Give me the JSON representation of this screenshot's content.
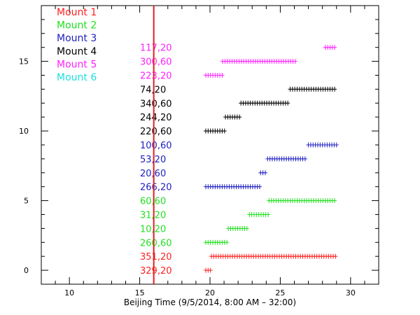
{
  "chart_data": {
    "type": "scatter",
    "xlabel": "Beijing Time (9/5/2014, 8:00 AM – 32:00)",
    "ylabel": "",
    "xlim": [
      8,
      32
    ],
    "ylim": [
      -1,
      19
    ],
    "x_ticks": [
      "10",
      "15",
      "20",
      "25",
      "30"
    ],
    "x_tick_values": [
      10,
      15,
      20,
      25,
      30
    ],
    "y_ticks": [
      "0",
      "5",
      "10",
      "15"
    ],
    "y_tick_values": [
      0,
      5,
      10,
      15
    ],
    "marker": "+",
    "reference_line": {
      "x": 16,
      "color": "#e02020"
    },
    "legend": [
      {
        "name": "Mount 1",
        "color": "#ff2020"
      },
      {
        "name": "Mount 2",
        "color": "#20e020"
      },
      {
        "name": "Mount 3",
        "color": "#2020c0"
      },
      {
        "name": "Mount 4",
        "color": "#000000"
      },
      {
        "name": "Mount 5",
        "color": "#ff20ff"
      },
      {
        "name": "Mount 6",
        "color": "#20e0e0"
      }
    ],
    "rows": [
      {
        "label": "329,20",
        "mount": 1,
        "y": 0,
        "x_start": 19.7,
        "x_end": 20.1
      },
      {
        "label": "351,20",
        "mount": 1,
        "y": 1,
        "x_start": 20.1,
        "x_end": 29.0
      },
      {
        "label": "260,60",
        "mount": 2,
        "y": 2,
        "x_start": 19.7,
        "x_end": 21.2
      },
      {
        "label": "10,20",
        "mount": 2,
        "y": 3,
        "x_start": 21.3,
        "x_end": 22.7
      },
      {
        "label": "31,20",
        "mount": 2,
        "y": 4,
        "x_start": 22.8,
        "x_end": 24.2
      },
      {
        "label": "60,60",
        "mount": 2,
        "y": 5,
        "x_start": 24.2,
        "x_end": 29.0
      },
      {
        "label": "266,20",
        "mount": 3,
        "y": 6,
        "x_start": 19.7,
        "x_end": 23.6
      },
      {
        "label": "20,60",
        "mount": 3,
        "y": 7,
        "x_start": 23.6,
        "x_end": 24.0
      },
      {
        "label": "53,20",
        "mount": 3,
        "y": 8,
        "x_start": 24.1,
        "x_end": 26.9
      },
      {
        "label": "100,60",
        "mount": 3,
        "y": 9,
        "x_start": 27.0,
        "x_end": 29.0
      },
      {
        "label": "220,60",
        "mount": 4,
        "y": 10,
        "x_start": 19.7,
        "x_end": 21.1
      },
      {
        "label": "244,20",
        "mount": 4,
        "y": 11,
        "x_start": 21.1,
        "x_end": 22.1
      },
      {
        "label": "340,60",
        "mount": 4,
        "y": 12,
        "x_start": 22.2,
        "x_end": 25.6
      },
      {
        "label": "74,20",
        "mount": 4,
        "y": 13,
        "x_start": 25.7,
        "x_end": 29.0
      },
      {
        "label": "223,20",
        "mount": 5,
        "y": 14,
        "x_start": 19.7,
        "x_end": 20.9
      },
      {
        "label": "300,60",
        "mount": 5,
        "y": 15,
        "x_start": 20.9,
        "x_end": 26.2
      },
      {
        "label": "117,20",
        "mount": 5,
        "y": 16,
        "x_start": 28.2,
        "x_end": 28.9
      }
    ]
  }
}
